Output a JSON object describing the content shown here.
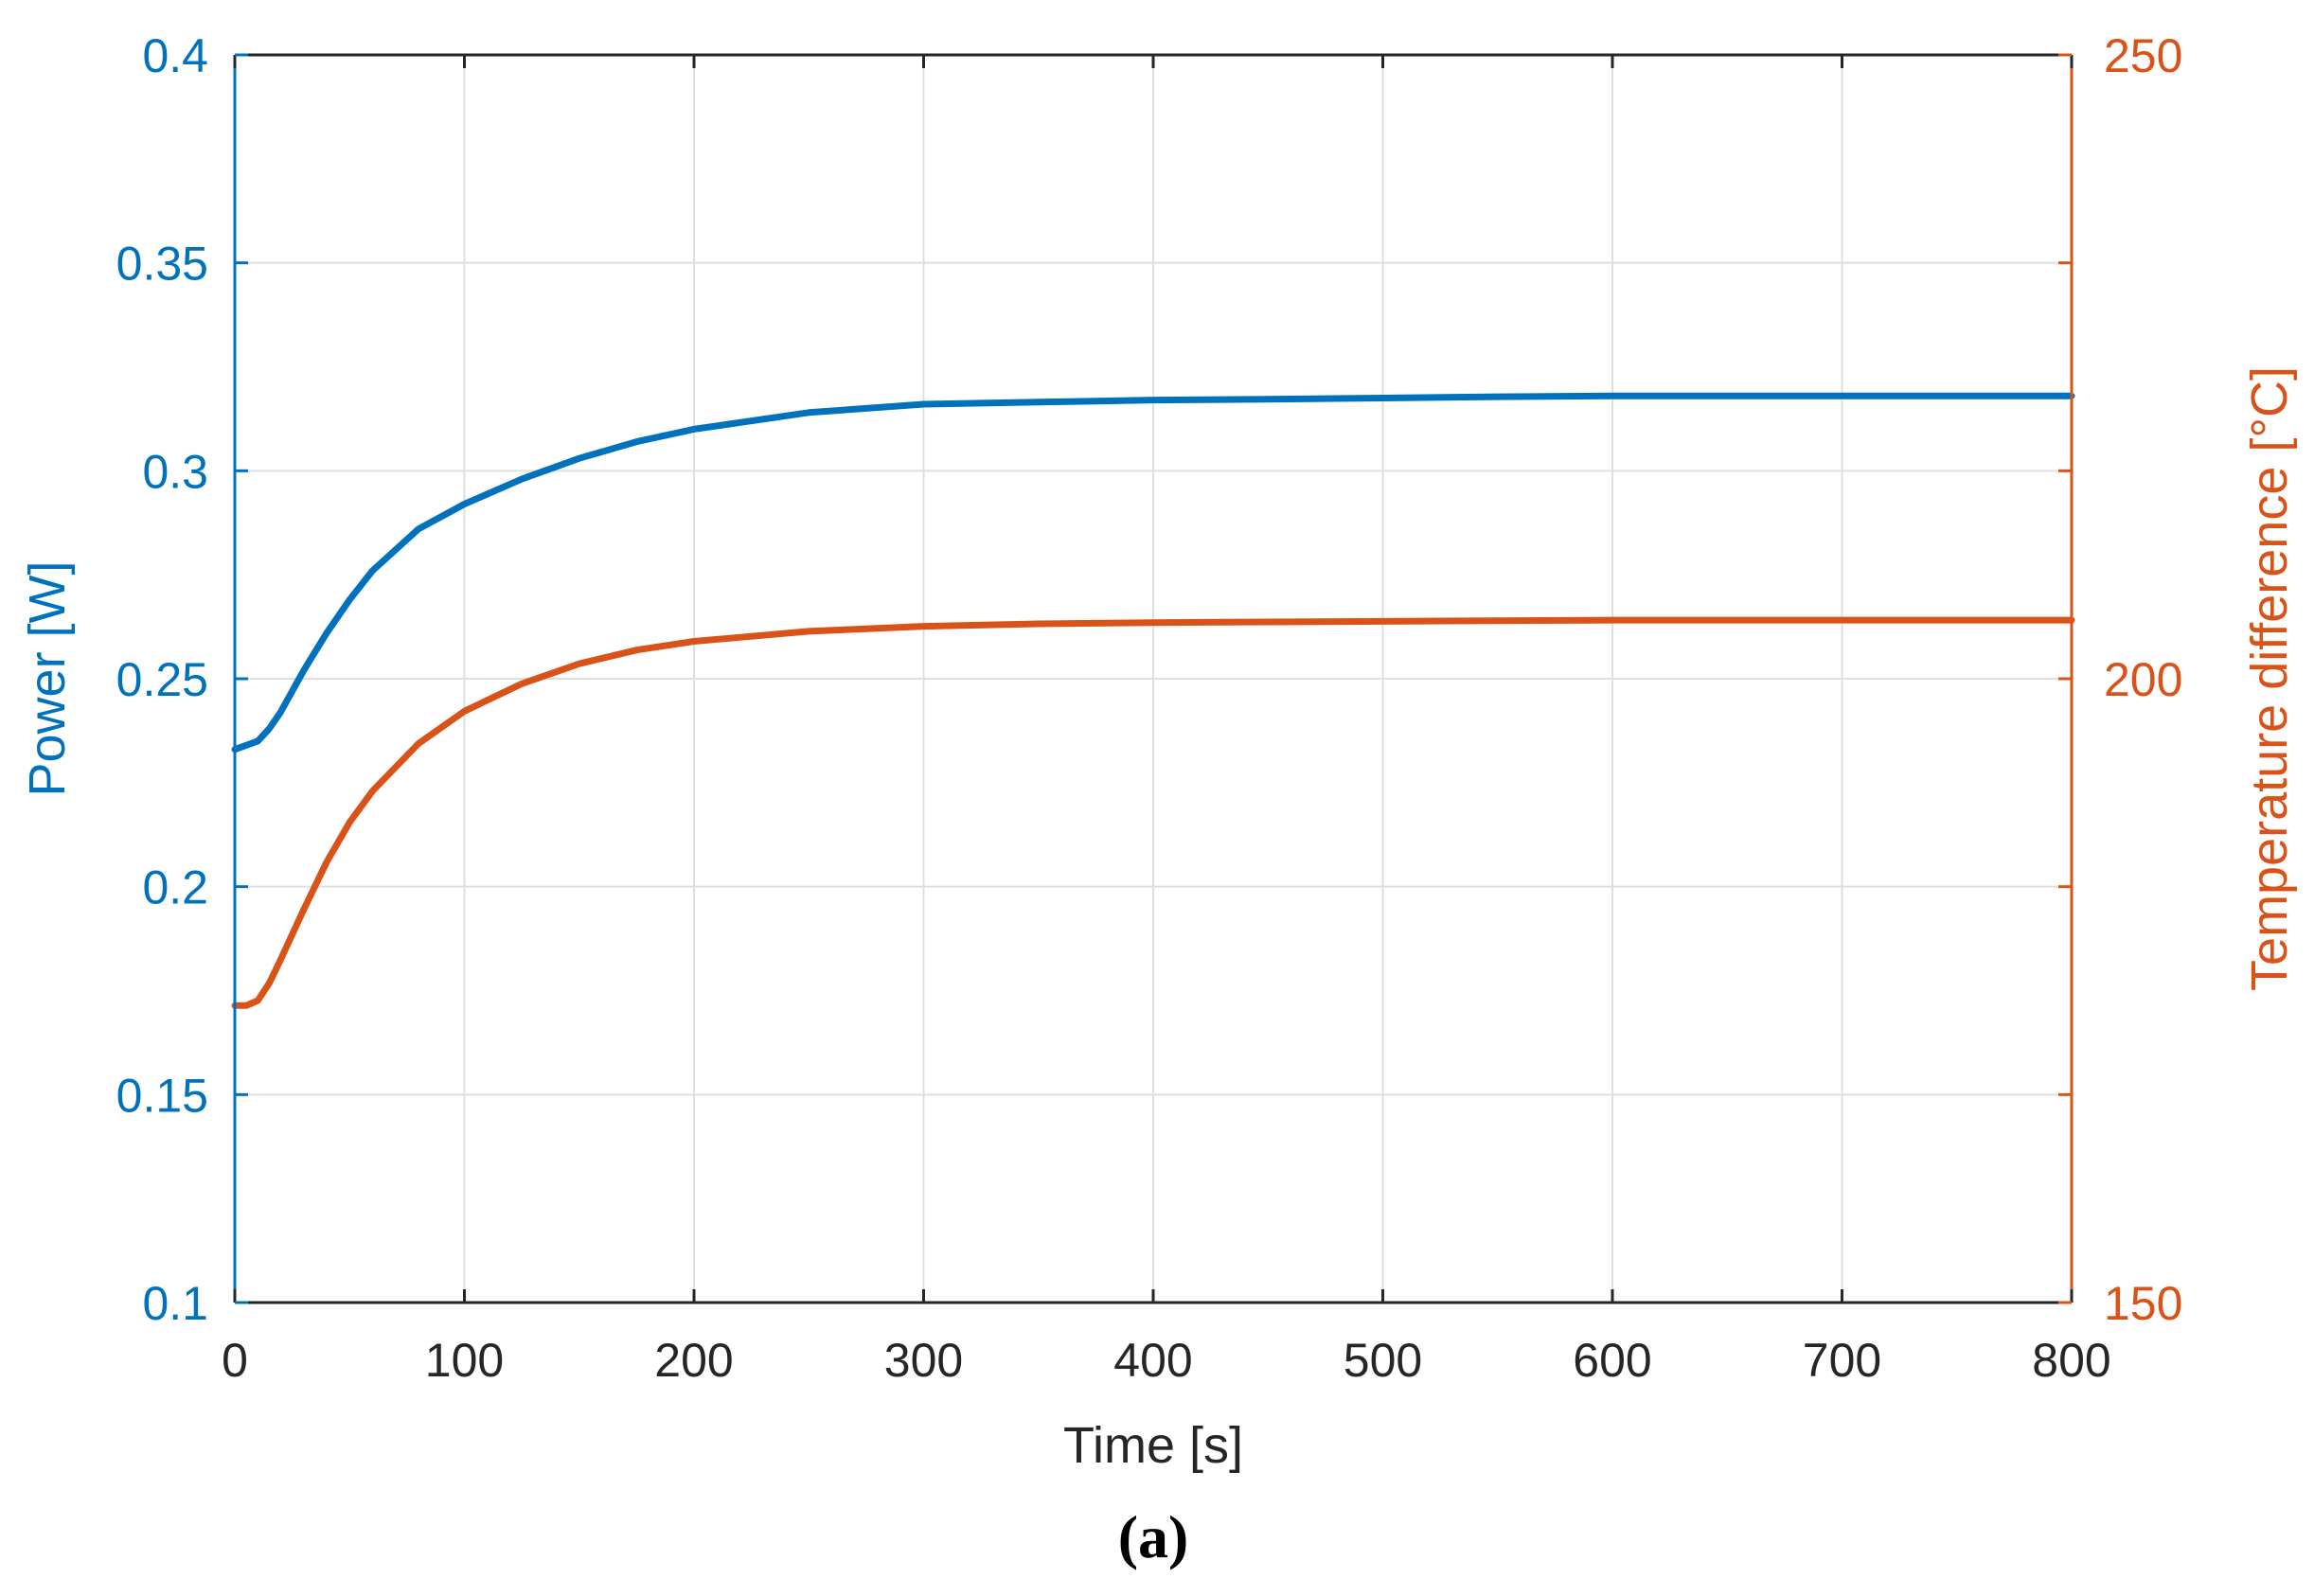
{
  "chart_data": {
    "type": "line",
    "xlabel": "Time [s]",
    "xlim": [
      0,
      800
    ],
    "xticks": [
      0,
      100,
      200,
      300,
      400,
      500,
      600,
      700,
      800
    ],
    "grid": true,
    "y_left": {
      "label": "Power [W]",
      "lim": [
        0.1,
        0.4
      ],
      "ticks": [
        "0.1",
        "0.15",
        "0.2",
        "0.25",
        "0.3",
        "0.35",
        "0.4"
      ],
      "color": "#0072BD"
    },
    "y_right": {
      "label": "Temperature difference [°C]",
      "lim": [
        150,
        250
      ],
      "ticks": [
        "150",
        "200",
        "250"
      ],
      "color": "#D95319"
    },
    "series": [
      {
        "axis": "left",
        "color": "#0072BD",
        "x": [
          0,
          5,
          10,
          15,
          20,
          30,
          40,
          50,
          60,
          80,
          100,
          125,
          150,
          175,
          200,
          250,
          300,
          350,
          400,
          450,
          500,
          550,
          600,
          700,
          800
        ],
        "y": [
          0.233,
          0.234,
          0.235,
          0.238,
          0.242,
          0.252,
          0.261,
          0.269,
          0.276,
          0.286,
          0.292,
          0.298,
          0.303,
          0.307,
          0.31,
          0.314,
          0.316,
          0.3165,
          0.317,
          0.3172,
          0.3175,
          0.3178,
          0.318,
          0.318,
          0.318
        ]
      },
      {
        "axis": "right",
        "color": "#D95319",
        "x": [
          0,
          5,
          10,
          15,
          20,
          30,
          40,
          50,
          60,
          80,
          100,
          125,
          150,
          175,
          200,
          250,
          300,
          350,
          400,
          450,
          500,
          600,
          700,
          800
        ],
        "y": [
          173.8,
          173.8,
          174.2,
          175.6,
          177.5,
          181.5,
          185.3,
          188.5,
          191.0,
          194.8,
          197.4,
          199.6,
          201.2,
          202.3,
          203.0,
          203.8,
          204.2,
          204.4,
          204.5,
          204.55,
          204.6,
          204.7,
          204.7,
          204.7
        ]
      }
    ]
  },
  "caption": "(a)"
}
